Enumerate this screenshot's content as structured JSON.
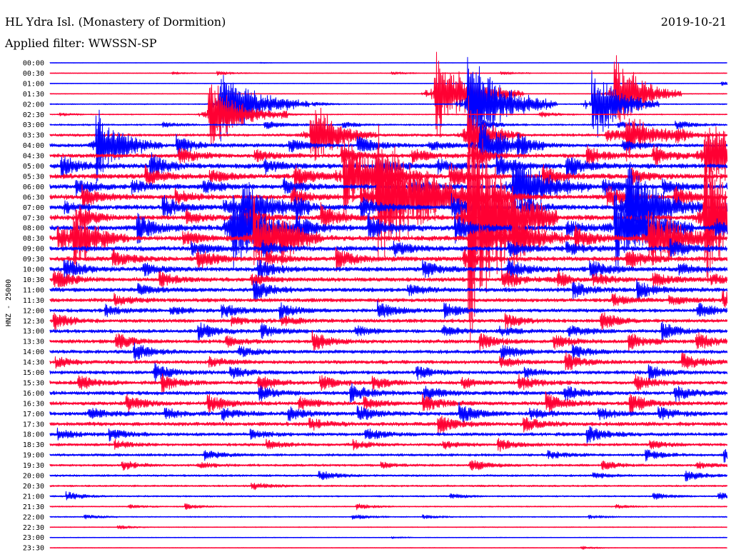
{
  "header": {
    "station": "HL Ydra Isl. (Monastery of Dormition)",
    "filter": "Applied filter: WWSSN-SP",
    "date": "2019-10-21"
  },
  "colors": {
    "blue": "#0000ff",
    "red": "#ff0033",
    "text": "#000000"
  },
  "chart_data": {
    "type": "line",
    "ylabel": "HNZ - 25000",
    "tick_labels": [
      "00:00",
      "00:30",
      "01:00",
      "01:30",
      "02:00",
      "02:30",
      "03:00",
      "03:30",
      "04:00",
      "04:30",
      "05:00",
      "05:30",
      "06:00",
      "06:30",
      "07:00",
      "07:30",
      "08:00",
      "08:30",
      "09:00",
      "09:30",
      "10:00",
      "10:30",
      "11:00",
      "11:30",
      "12:00",
      "12:30",
      "13:00",
      "13:30",
      "14:00",
      "14:30",
      "15:00",
      "15:30",
      "16:00",
      "16:30",
      "17:00",
      "17:30",
      "18:00",
      "18:30",
      "19:00",
      "19:30",
      "20:00",
      "20:30",
      "21:00",
      "21:30",
      "22:00",
      "22:30",
      "23:00",
      "23:30"
    ],
    "trace_colors": [
      "blue",
      "red"
    ],
    "noise_level": [
      0.3,
      0.6,
      0.5,
      0.6,
      0.9,
      0.9,
      1.4,
      2.2,
      2.8,
      3.2,
      3.8,
      3.8,
      3.6,
      3.6,
      3.6,
      3.8,
      4.2,
      4.0,
      3.8,
      3.6,
      3.4,
      3.2,
      3.2,
      3.0,
      2.8,
      2.8,
      2.8,
      2.8,
      2.8,
      2.8,
      2.8,
      2.8,
      3.0,
      3.0,
      3.0,
      3.0,
      2.6,
      2.2,
      2.0,
      1.8,
      1.6,
      1.4,
      1.2,
      0.9,
      0.9,
      0.7,
      0.6,
      0.5
    ],
    "events": [
      {
        "row": 3,
        "minute": 17.0,
        "amplitude": 80,
        "duration_min": 4.0
      },
      {
        "row": 3,
        "minute": 25.0,
        "amplitude": 75,
        "duration_min": 3.0
      },
      {
        "row": 4,
        "minute": 7.5,
        "amplitude": 70,
        "duration_min": 4.0
      },
      {
        "row": 4,
        "minute": 18.5,
        "amplitude": 90,
        "duration_min": 4.0
      },
      {
        "row": 4,
        "minute": 24.0,
        "amplitude": 70,
        "duration_min": 3.0
      },
      {
        "row": 5,
        "minute": 7.0,
        "amplitude": 60,
        "duration_min": 3.5
      },
      {
        "row": 7,
        "minute": 11.5,
        "amplitude": 55,
        "duration_min": 3.0
      },
      {
        "row": 7,
        "minute": 18.5,
        "amplitude": 48,
        "duration_min": 2.5
      },
      {
        "row": 7,
        "minute": 25.5,
        "amplitude": 40,
        "duration_min": 3.0
      },
      {
        "row": 8,
        "minute": 2.0,
        "amplitude": 60,
        "duration_min": 3.0
      },
      {
        "row": 8,
        "minute": 19.0,
        "amplitude": 45,
        "duration_min": 3.0
      },
      {
        "row": 9,
        "minute": 29.0,
        "amplitude": 80,
        "duration_min": 3.0
      },
      {
        "row": 11,
        "minute": 13.0,
        "amplitude": 70,
        "duration_min": 3.5
      },
      {
        "row": 12,
        "minute": 20.5,
        "amplitude": 65,
        "duration_min": 3.5
      },
      {
        "row": 13,
        "minute": 14.5,
        "amplitude": 120,
        "duration_min": 5.0
      },
      {
        "row": 14,
        "minute": 8.5,
        "amplitude": 55,
        "duration_min": 3.0
      },
      {
        "row": 14,
        "minute": 25.5,
        "amplitude": 85,
        "duration_min": 3.5
      },
      {
        "row": 15,
        "minute": 18.5,
        "amplitude": 220,
        "duration_min": 4.0
      },
      {
        "row": 15,
        "minute": 29.0,
        "amplitude": 110,
        "duration_min": 3.0
      },
      {
        "row": 16,
        "minute": 8.0,
        "amplitude": 75,
        "duration_min": 3.0
      },
      {
        "row": 16,
        "minute": 25.0,
        "amplitude": 85,
        "duration_min": 3.5
      },
      {
        "row": 17,
        "minute": 1.0,
        "amplitude": 50,
        "duration_min": 2.5
      },
      {
        "row": 17,
        "minute": 9.0,
        "amplitude": 70,
        "duration_min": 3.0
      },
      {
        "row": 17,
        "minute": 20.5,
        "amplitude": 55,
        "duration_min": 2.5
      },
      {
        "row": 17,
        "minute": 26.5,
        "amplitude": 60,
        "duration_min": 3.0
      },
      {
        "row": 21,
        "minute": 22.5,
        "amplitude": 18,
        "duration_min": 1.2
      }
    ]
  }
}
